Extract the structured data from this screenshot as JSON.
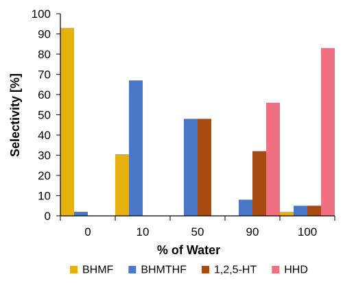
{
  "chart_data": {
    "type": "bar",
    "title": "",
    "xlabel": "% of Water",
    "ylabel": "Selectivity [%]",
    "ylim": [
      0,
      100
    ],
    "yticks": [
      0,
      10,
      20,
      30,
      40,
      50,
      60,
      70,
      80,
      90,
      100
    ],
    "categories": [
      "0",
      "10",
      "50",
      "90",
      "100"
    ],
    "grid": false,
    "legend_position": "bottom",
    "series": [
      {
        "name": "BHMF",
        "color": "#E6B00E",
        "values": [
          93,
          30.5,
          0,
          0,
          2
        ]
      },
      {
        "name": "BHMTHF",
        "color": "#4A78C8",
        "values": [
          2,
          67,
          48,
          8,
          5
        ]
      },
      {
        "name": "1,2,5-HT",
        "color": "#A64B12",
        "values": [
          0,
          0,
          48,
          32,
          5
        ]
      },
      {
        "name": "HHD",
        "color": "#F07182",
        "values": [
          0,
          0,
          0,
          56,
          83
        ]
      }
    ]
  }
}
